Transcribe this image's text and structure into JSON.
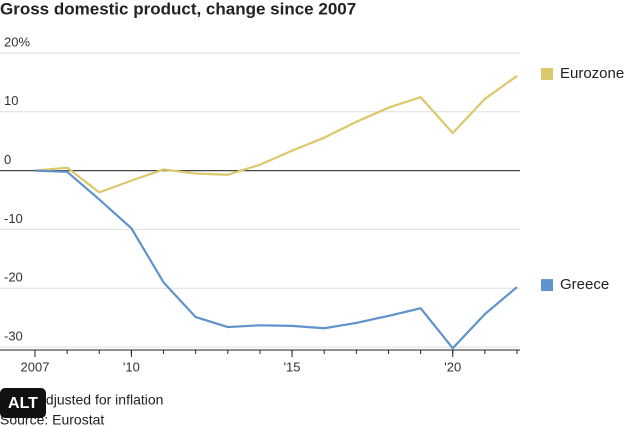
{
  "chart_data": {
    "type": "line",
    "title": "Gross domestic product, change since 2007",
    "x": [
      2007,
      2008,
      2009,
      2010,
      2011,
      2012,
      2013,
      2014,
      2015,
      2016,
      2017,
      2018,
      2019,
      2020,
      2021,
      2022
    ],
    "series": [
      {
        "name": "Eurozone",
        "color": "#dcc76a",
        "values": [
          0,
          0.5,
          -3.7,
          -1.7,
          0.2,
          -0.5,
          -0.7,
          1,
          3.4,
          5.6,
          8.3,
          10.7,
          12.5,
          6.4,
          12.2,
          16.1
        ]
      },
      {
        "name": "Greece",
        "color": "#5f93cb",
        "values": [
          0,
          -0.2,
          -4.9,
          -9.8,
          -19,
          -24.9,
          -26.6,
          -26.3,
          -26.4,
          -26.8,
          -25.9,
          -24.7,
          -23.4,
          -30.2,
          -24.4,
          -19.8
        ]
      }
    ],
    "xlim": [
      2007,
      2022
    ],
    "xticks": [
      2007,
      {
        "value": 2010,
        "label": "'10"
      },
      {
        "value": 2015,
        "label": "'15"
      },
      {
        "value": 2020,
        "label": "'20"
      }
    ],
    "ylim": [
      -30.5,
      20
    ],
    "yticks": [
      {
        "value": 20,
        "label": "20%"
      },
      10,
      0,
      -10,
      -20,
      -30
    ],
    "grid": true,
    "notes": [
      "Note: Adjusted for inflation",
      "Source: Eurostat"
    ]
  },
  "alt_badge": "ALT"
}
